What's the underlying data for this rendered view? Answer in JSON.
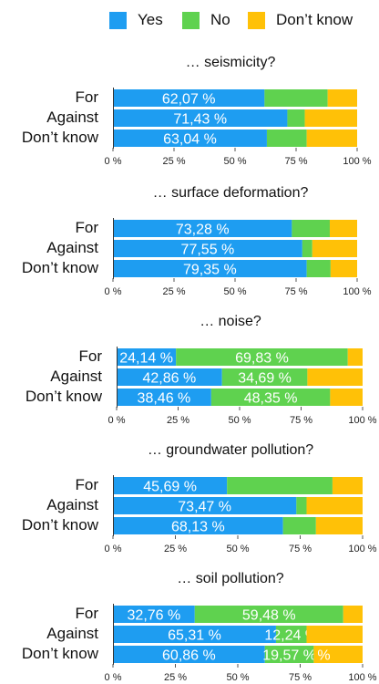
{
  "colors": {
    "yes": "#1e9df1",
    "no": "#5fd24f",
    "dont_know": "#ffc107"
  },
  "legend": [
    {
      "label": "Yes",
      "color_key": "yes"
    },
    {
      "label": "No",
      "color_key": "no"
    },
    {
      "label": "Don’t know",
      "color_key": "dont_know"
    }
  ],
  "chart_data": [
    {
      "type": "bar",
      "orientation": "horizontal",
      "stacked": true,
      "title": "… seismicity?",
      "categories": [
        "For",
        "Against",
        "Don’t know"
      ],
      "xlim": [
        0,
        100
      ],
      "x_ticks": [
        "0 %",
        "25 %",
        "50 %",
        "75 %",
        "100 %"
      ],
      "series": [
        {
          "name": "Yes",
          "values": [
            62.07,
            71.43,
            63.04
          ],
          "labels": [
            "62,07 %",
            "71,43 %",
            "63,04 %"
          ]
        },
        {
          "name": "No",
          "values": [
            25.86,
            7.14,
            16.3
          ],
          "labels": [
            "",
            "",
            ""
          ]
        },
        {
          "name": "Don’t know",
          "values": [
            12.07,
            21.43,
            20.66
          ],
          "labels": [
            "",
            "",
            ""
          ]
        }
      ]
    },
    {
      "type": "bar",
      "orientation": "horizontal",
      "stacked": true,
      "title": "… surface deformation?",
      "categories": [
        "For",
        "Against",
        "Don’t know"
      ],
      "xlim": [
        0,
        100
      ],
      "x_ticks": [
        "0 %",
        "25 %",
        "50 %",
        "75 %",
        "100 %"
      ],
      "series": [
        {
          "name": "Yes",
          "values": [
            73.28,
            77.55,
            79.35
          ],
          "labels": [
            "73,28 %",
            "77,55 %",
            "79,35 %"
          ]
        },
        {
          "name": "No",
          "values": [
            15.52,
            4.08,
            9.78
          ],
          "labels": [
            "",
            "",
            ""
          ]
        },
        {
          "name": "Don’t know",
          "values": [
            11.2,
            18.37,
            10.87
          ],
          "labels": [
            "",
            "",
            ""
          ]
        }
      ]
    },
    {
      "type": "bar",
      "orientation": "horizontal",
      "stacked": true,
      "title": "… noise?",
      "categories": [
        "For",
        "Against",
        "Don’t know"
      ],
      "xlim": [
        0,
        100
      ],
      "x_ticks": [
        "0 %",
        "25 %",
        "50 %",
        "75 %",
        "100 %"
      ],
      "series": [
        {
          "name": "Yes",
          "values": [
            24.14,
            42.86,
            38.46
          ],
          "labels": [
            "24,14 %",
            "42,86 %",
            "38,46 %"
          ]
        },
        {
          "name": "No",
          "values": [
            69.83,
            34.69,
            48.35
          ],
          "labels": [
            "69,83 %",
            "34,69 %",
            "48,35 %"
          ]
        },
        {
          "name": "Don’t know",
          "values": [
            6.03,
            22.45,
            13.19
          ],
          "labels": [
            "",
            "",
            ""
          ]
        }
      ]
    },
    {
      "type": "bar",
      "orientation": "horizontal",
      "stacked": true,
      "title": "… groundwater pollution?",
      "categories": [
        "For",
        "Against",
        "Don’t know"
      ],
      "xlim": [
        0,
        100
      ],
      "x_ticks": [
        "0 %",
        "25 %",
        "50 %",
        "75 %",
        "100 %"
      ],
      "series": [
        {
          "name": "Yes",
          "values": [
            45.69,
            73.47,
            68.13
          ],
          "labels": [
            "45,69 %",
            "73,47 %",
            "68,13 %"
          ]
        },
        {
          "name": "No",
          "values": [
            42.24,
            4.08,
            13.19
          ],
          "labels": [
            "",
            "",
            ""
          ]
        },
        {
          "name": "Don’t know",
          "values": [
            12.07,
            22.45,
            18.68
          ],
          "labels": [
            "",
            "",
            ""
          ]
        }
      ]
    },
    {
      "type": "bar",
      "orientation": "horizontal",
      "stacked": true,
      "title": "… soil pollution?",
      "categories": [
        "For",
        "Against",
        "Don’t know"
      ],
      "xlim": [
        0,
        100
      ],
      "x_ticks": [
        "0 %",
        "25 %",
        "50 %",
        "75 %",
        "100 %"
      ],
      "series": [
        {
          "name": "Yes",
          "values": [
            32.76,
            65.31,
            60.86
          ],
          "labels": [
            "32,76 %",
            "65,31 %",
            "60,86 %"
          ]
        },
        {
          "name": "No",
          "values": [
            59.48,
            12.24,
            19.57
          ],
          "labels": [
            "59,48 %",
            "12,24 %",
            "19,57 %"
          ]
        },
        {
          "name": "Don’t know",
          "values": [
            7.76,
            22.45,
            19.57
          ],
          "labels": [
            "",
            "",
            "%"
          ]
        }
      ]
    }
  ]
}
